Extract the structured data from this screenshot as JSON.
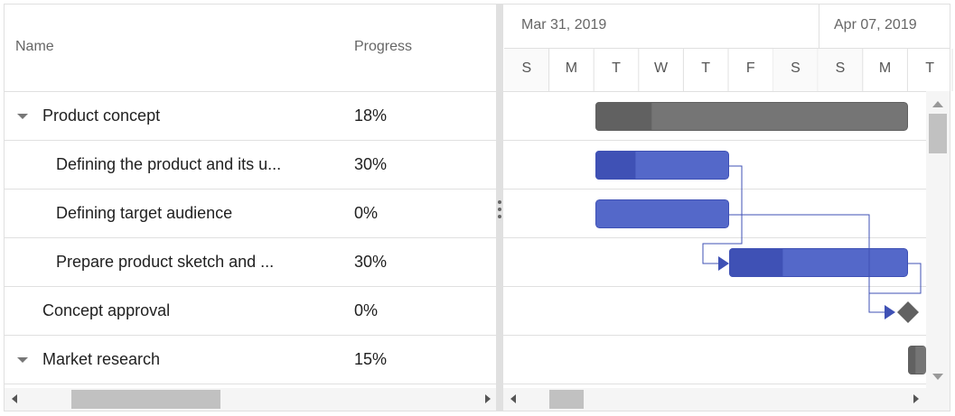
{
  "columns": {
    "name": "Name",
    "progress": "Progress"
  },
  "timeline": {
    "weeks": [
      "Mar 31, 2019",
      "Apr 07, 2019"
    ],
    "days": [
      "S",
      "M",
      "T",
      "W",
      "T",
      "F",
      "S",
      "S",
      "M",
      "T"
    ]
  },
  "rows": [
    {
      "name": "Product concept",
      "progress": "18%"
    },
    {
      "name": "Defining the product and its u...",
      "progress": "30%"
    },
    {
      "name": "Defining target audience",
      "progress": "0%"
    },
    {
      "name": "Prepare product sketch and ...",
      "progress": "30%"
    },
    {
      "name": "Concept approval",
      "progress": "0%"
    },
    {
      "name": "Market research",
      "progress": "15%"
    }
  ]
}
